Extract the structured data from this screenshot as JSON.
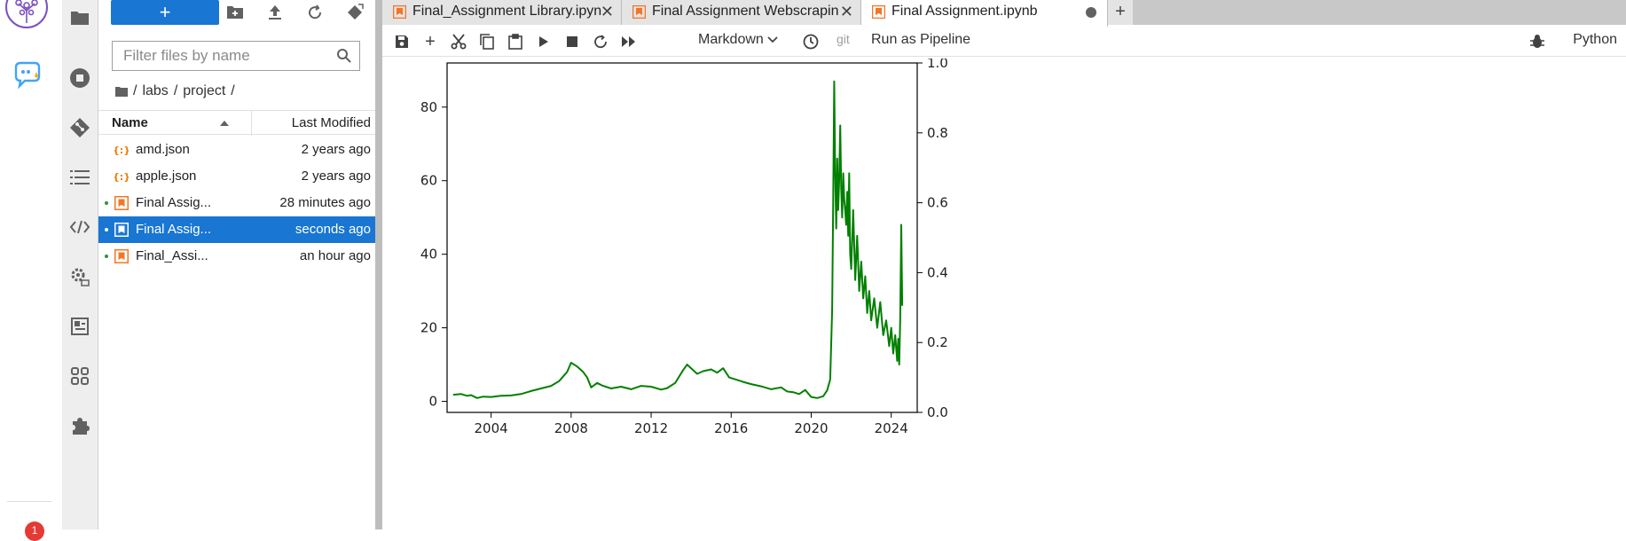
{
  "filebrowser": {
    "filter_placeholder": "Filter files by name",
    "breadcrumb": [
      "labs",
      "project"
    ],
    "columns": {
      "name": "Name",
      "modified": "Last Modified"
    },
    "files": [
      {
        "name": "amd.json",
        "modified": "2 years ago",
        "type": "json",
        "running": false,
        "selected": false
      },
      {
        "name": "apple.json",
        "modified": "2 years ago",
        "type": "json",
        "running": false,
        "selected": false
      },
      {
        "name": "Final Assig...",
        "modified": "28 minutes ago",
        "type": "notebook",
        "running": true,
        "selected": false
      },
      {
        "name": "Final Assig...",
        "modified": "seconds ago",
        "type": "notebook",
        "running": true,
        "selected": true
      },
      {
        "name": "Final_Assi...",
        "modified": "an hour ago",
        "type": "notebook",
        "running": true,
        "selected": false
      }
    ]
  },
  "tabs": [
    {
      "label": "Final_Assignment Library.ipynb",
      "active": false,
      "dirty": false
    },
    {
      "label": "Final Assignment Webscraping.ipynb",
      "active": false,
      "dirty": false
    },
    {
      "label": "Final Assignment.ipynb",
      "active": true,
      "dirty": true
    }
  ],
  "toolbar": {
    "cell_type": "Markdown",
    "git_label": "git",
    "pipeline_label": "Run as Pipeline",
    "kernel": "Python"
  },
  "notification_count": "1",
  "colors": {
    "accent": "#1976d2",
    "line": "#008000",
    "notebook_icon": "#f37626",
    "json_icon": "#f57c00"
  },
  "chart_data": {
    "type": "line",
    "title": "",
    "xlabel": "",
    "ylabel": "",
    "xlim": [
      2001.8,
      2025.3
    ],
    "ylim": [
      -3,
      92
    ],
    "y2lim": [
      0,
      1
    ],
    "xticks": [
      2004,
      2008,
      2012,
      2016,
      2020,
      2024
    ],
    "yticks": [
      0,
      20,
      40,
      60,
      80
    ],
    "y2ticks": [
      0.0,
      0.2,
      0.4,
      0.6,
      0.8,
      1.0
    ],
    "series": [
      {
        "color": "#008000",
        "x": [
          2002.1,
          2002.5,
          2002.8,
          2003.0,
          2003.3,
          2003.6,
          2004.0,
          2004.5,
          2005.0,
          2005.5,
          2006.0,
          2006.5,
          2007.0,
          2007.4,
          2007.8,
          2008.0,
          2008.3,
          2008.6,
          2008.8,
          2009.0,
          2009.3,
          2009.6,
          2010.0,
          2010.5,
          2011.0,
          2011.5,
          2012.0,
          2012.5,
          2012.8,
          2013.2,
          2013.6,
          2013.8,
          2014.0,
          2014.3,
          2014.6,
          2015.0,
          2015.3,
          2015.6,
          2015.9,
          2016.2,
          2016.6,
          2017.0,
          2017.5,
          2018.0,
          2018.5,
          2018.8,
          2019.1,
          2019.4,
          2019.7,
          2020.0,
          2020.3,
          2020.6,
          2020.8,
          2020.95,
          2021.05,
          2021.1,
          2021.15,
          2021.2,
          2021.25,
          2021.3,
          2021.35,
          2021.4,
          2021.45,
          2021.5,
          2021.55,
          2021.6,
          2021.65,
          2021.7,
          2021.75,
          2021.8,
          2021.85,
          2021.9,
          2021.95,
          2022.0,
          2022.1,
          2022.2,
          2022.3,
          2022.4,
          2022.5,
          2022.6,
          2022.7,
          2022.8,
          2022.9,
          2023.0,
          2023.15,
          2023.3,
          2023.45,
          2023.6,
          2023.75,
          2023.9,
          2024.0,
          2024.1,
          2024.2,
          2024.3,
          2024.35,
          2024.4,
          2024.45,
          2024.5,
          2024.55
        ],
        "y": [
          1.8,
          2.0,
          1.5,
          1.7,
          0.9,
          1.3,
          1.2,
          1.5,
          1.6,
          2.0,
          2.8,
          3.5,
          4.2,
          5.5,
          8.0,
          10.5,
          9.5,
          8.0,
          6.5,
          3.8,
          5.0,
          4.2,
          3.5,
          4.0,
          3.3,
          4.2,
          4.0,
          3.2,
          3.6,
          5.0,
          8.5,
          10.0,
          9.0,
          7.5,
          8.2,
          8.7,
          7.8,
          9.0,
          6.5,
          6.0,
          5.3,
          4.7,
          4.1,
          3.3,
          3.8,
          2.7,
          2.5,
          2.0,
          3.1,
          1.2,
          0.9,
          1.4,
          3.0,
          6.0,
          25.0,
          55.0,
          87.0,
          62.0,
          47.0,
          66.0,
          52.0,
          60.0,
          75.0,
          58.0,
          50.0,
          62.0,
          55.0,
          52.0,
          48.0,
          57.0,
          45.0,
          62.0,
          40.0,
          36.0,
          52.0,
          33.0,
          45.0,
          30.0,
          38.0,
          28.0,
          34.0,
          24.0,
          30.0,
          22.0,
          28.0,
          20.0,
          27.0,
          18.0,
          22.0,
          15.0,
          20.0,
          13.0,
          18.0,
          11.0,
          17.0,
          10.0,
          22.0,
          48.0,
          26.0
        ]
      }
    ]
  }
}
